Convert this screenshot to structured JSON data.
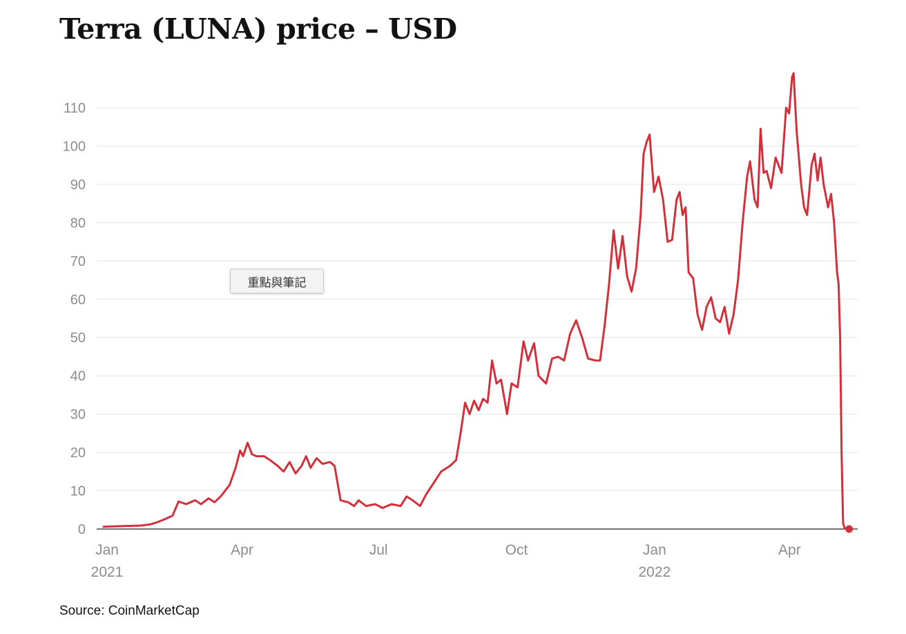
{
  "chart_data": {
    "type": "line",
    "title": "Terra (LUNA) price – USD",
    "source": "Source: CoinMarketCap",
    "tooltip_text": "重點與筆記",
    "ylim": [
      0,
      110
    ],
    "y_ticks": [
      0,
      10,
      20,
      30,
      40,
      50,
      60,
      70,
      80,
      90,
      100,
      110
    ],
    "grid": true,
    "x_ticks": [
      {
        "date": "2021-01-01",
        "label": "Jan",
        "year": "2021"
      },
      {
        "date": "2021-04-01",
        "label": "Apr",
        "year": ""
      },
      {
        "date": "2021-07-01",
        "label": "Jul",
        "year": ""
      },
      {
        "date": "2021-10-01",
        "label": "Oct",
        "year": ""
      },
      {
        "date": "2022-01-01",
        "label": "Jan",
        "year": "2022"
      },
      {
        "date": "2022-04-01",
        "label": "Apr",
        "year": ""
      }
    ],
    "xlim": [
      "2021-01-01",
      "2022-05-16"
    ],
    "color": "#d1303a",
    "series": [
      {
        "name": "",
        "points": [
          [
            "2021-01-01",
            0.6
          ],
          [
            "2021-01-08",
            0.7
          ],
          [
            "2021-01-16",
            0.8
          ],
          [
            "2021-01-26",
            0.9
          ],
          [
            "2021-02-01",
            1.2
          ],
          [
            "2021-02-06",
            1.8
          ],
          [
            "2021-02-11",
            2.6
          ],
          [
            "2021-02-16",
            3.5
          ],
          [
            "2021-02-20",
            7.2
          ],
          [
            "2021-02-25",
            6.5
          ],
          [
            "2021-03-03",
            7.5
          ],
          [
            "2021-03-07",
            6.5
          ],
          [
            "2021-03-12",
            8.0
          ],
          [
            "2021-03-16",
            7.0
          ],
          [
            "2021-03-20",
            8.5
          ],
          [
            "2021-03-26",
            11.5
          ],
          [
            "2021-03-30",
            16.0
          ],
          [
            "2021-04-02",
            20.5
          ],
          [
            "2021-04-04",
            19.0
          ],
          [
            "2021-04-07",
            22.5
          ],
          [
            "2021-04-10",
            19.5
          ],
          [
            "2021-04-13",
            19.0
          ],
          [
            "2021-04-18",
            19.0
          ],
          [
            "2021-04-22",
            18.0
          ],
          [
            "2021-04-27",
            16.5
          ],
          [
            "2021-05-01",
            15.0
          ],
          [
            "2021-05-05",
            17.5
          ],
          [
            "2021-05-09",
            14.5
          ],
          [
            "2021-05-13",
            16.5
          ],
          [
            "2021-05-16",
            19.0
          ],
          [
            "2021-05-19",
            16.0
          ],
          [
            "2021-05-23",
            18.5
          ],
          [
            "2021-05-27",
            17.0
          ],
          [
            "2021-06-01",
            17.5
          ],
          [
            "2021-06-04",
            16.5
          ],
          [
            "2021-06-08",
            7.5
          ],
          [
            "2021-06-13",
            7.0
          ],
          [
            "2021-06-17",
            6.0
          ],
          [
            "2021-06-20",
            7.5
          ],
          [
            "2021-06-25",
            6.0
          ],
          [
            "2021-07-01",
            6.5
          ],
          [
            "2021-07-06",
            5.5
          ],
          [
            "2021-07-12",
            6.5
          ],
          [
            "2021-07-18",
            6.0
          ],
          [
            "2021-07-22",
            8.5
          ],
          [
            "2021-07-26",
            7.5
          ],
          [
            "2021-07-31",
            6.0
          ],
          [
            "2021-08-04",
            9.0
          ],
          [
            "2021-08-09",
            12.0
          ],
          [
            "2021-08-14",
            15.0
          ],
          [
            "2021-08-20",
            16.5
          ],
          [
            "2021-08-24",
            18.0
          ],
          [
            "2021-08-27",
            25.0
          ],
          [
            "2021-08-30",
            33.0
          ],
          [
            "2021-09-02",
            30.0
          ],
          [
            "2021-09-05",
            33.5
          ],
          [
            "2021-09-08",
            31.0
          ],
          [
            "2021-09-11",
            34.0
          ],
          [
            "2021-09-14",
            33.0
          ],
          [
            "2021-09-17",
            44.0
          ],
          [
            "2021-09-20",
            38.0
          ],
          [
            "2021-09-23",
            39.0
          ],
          [
            "2021-09-27",
            30.0
          ],
          [
            "2021-09-30",
            38.0
          ],
          [
            "2021-10-04",
            37.0
          ],
          [
            "2021-10-08",
            49.0
          ],
          [
            "2021-10-11",
            44.0
          ],
          [
            "2021-10-15",
            48.5
          ],
          [
            "2021-10-18",
            40.0
          ],
          [
            "2021-10-23",
            38.0
          ],
          [
            "2021-10-27",
            44.5
          ],
          [
            "2021-10-31",
            45.0
          ],
          [
            "2021-11-04",
            44.0
          ],
          [
            "2021-11-08",
            51.0
          ],
          [
            "2021-11-12",
            54.5
          ],
          [
            "2021-11-16",
            50.0
          ],
          [
            "2021-11-20",
            44.5
          ],
          [
            "2021-11-25",
            44.0
          ],
          [
            "2021-11-28",
            44.0
          ],
          [
            "2021-12-01",
            53.0
          ],
          [
            "2021-12-04",
            64.0
          ],
          [
            "2021-12-07",
            78.0
          ],
          [
            "2021-12-10",
            68.0
          ],
          [
            "2021-12-13",
            76.5
          ],
          [
            "2021-12-16",
            66.0
          ],
          [
            "2021-12-19",
            62.0
          ],
          [
            "2021-12-22",
            68.0
          ],
          [
            "2021-12-25",
            82.0
          ],
          [
            "2021-12-27",
            98.0
          ],
          [
            "2021-12-29",
            101.0
          ],
          [
            "2021-12-31",
            103.0
          ],
          [
            "2022-01-03",
            88.0
          ],
          [
            "2022-01-06",
            92.0
          ],
          [
            "2022-01-09",
            86.0
          ],
          [
            "2022-01-12",
            75.0
          ],
          [
            "2022-01-15",
            75.5
          ],
          [
            "2022-01-18",
            86.0
          ],
          [
            "2022-01-20",
            88.0
          ],
          [
            "2022-01-22",
            82.0
          ],
          [
            "2022-01-24",
            84.0
          ],
          [
            "2022-01-26",
            67.0
          ],
          [
            "2022-01-29",
            65.5
          ],
          [
            "2022-02-01",
            56.0
          ],
          [
            "2022-02-04",
            52.0
          ],
          [
            "2022-02-07",
            58.0
          ],
          [
            "2022-02-10",
            60.5
          ],
          [
            "2022-02-13",
            55.0
          ],
          [
            "2022-02-16",
            54.0
          ],
          [
            "2022-02-19",
            58.0
          ],
          [
            "2022-02-22",
            51.0
          ],
          [
            "2022-02-25",
            56.0
          ],
          [
            "2022-02-28",
            65.0
          ],
          [
            "2022-03-03",
            80.0
          ],
          [
            "2022-03-06",
            92.0
          ],
          [
            "2022-03-08",
            96.0
          ],
          [
            "2022-03-11",
            86.0
          ],
          [
            "2022-03-13",
            84.0
          ],
          [
            "2022-03-15",
            104.5
          ],
          [
            "2022-03-17",
            93.0
          ],
          [
            "2022-03-19",
            93.5
          ],
          [
            "2022-03-22",
            89.0
          ],
          [
            "2022-03-25",
            97.0
          ],
          [
            "2022-03-29",
            93.0
          ],
          [
            "2022-04-01",
            110.0
          ],
          [
            "2022-04-03",
            108.5
          ],
          [
            "2022-04-05",
            118.0
          ],
          [
            "2022-04-06",
            119.0
          ],
          [
            "2022-04-08",
            104.0
          ],
          [
            "2022-04-11",
            90.0
          ],
          [
            "2022-04-13",
            84.0
          ],
          [
            "2022-04-15",
            82.0
          ],
          [
            "2022-04-18",
            95.0
          ],
          [
            "2022-04-20",
            98.0
          ],
          [
            "2022-04-22",
            91.0
          ],
          [
            "2022-04-24",
            97.0
          ],
          [
            "2022-04-26",
            90.0
          ],
          [
            "2022-04-29",
            84.0
          ],
          [
            "2022-05-01",
            87.5
          ],
          [
            "2022-05-03",
            80.0
          ],
          [
            "2022-05-05",
            67.0
          ],
          [
            "2022-05-06",
            64.0
          ],
          [
            "2022-05-07",
            50.0
          ],
          [
            "2022-05-08",
            20.0
          ],
          [
            "2022-05-09",
            1.5
          ],
          [
            "2022-05-10",
            0.2
          ],
          [
            "2022-05-13",
            0.0
          ]
        ],
        "end_marker": [
          "2022-05-13",
          0.0
        ]
      }
    ]
  }
}
